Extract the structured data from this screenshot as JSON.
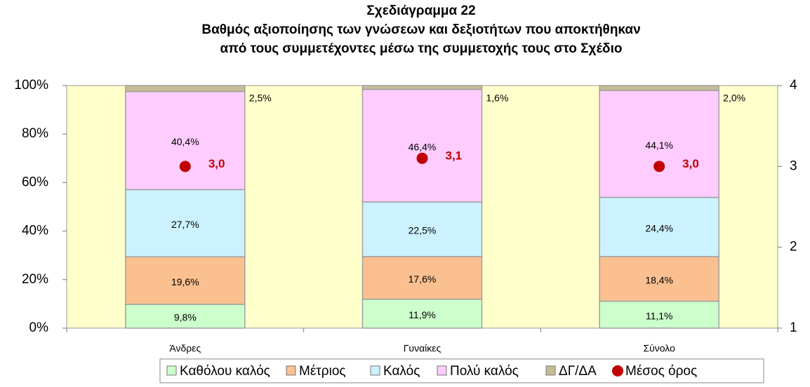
{
  "chart_data": {
    "type": "stacked_bar",
    "title": [
      "Σχεδιάγραμμα 22",
      "Βαθμός αξιοποίησης των γνώσεων και δεξιοτήτων που αποκτήθηκαν",
      "από τους συμμετέχοντες μέσω της συμμετοχής τους στο Σχέδιο"
    ],
    "categories": [
      "Άνδρες",
      "Γυναίκες",
      "Σύνολο"
    ],
    "series": [
      {
        "name": "Καθόλου καλός",
        "color": "#ccffcc",
        "values": [
          9.8,
          11.9,
          11.1
        ],
        "value_labels": [
          "9,8%",
          "11,9%",
          "11,1%"
        ]
      },
      {
        "name": "Μέτριος",
        "color": "#fac090",
        "values": [
          19.6,
          17.6,
          18.4
        ],
        "value_labels": [
          "19,6%",
          "17,6%",
          "18,4%"
        ]
      },
      {
        "name": "Καλός",
        "color": "#ccf2ff",
        "values": [
          27.7,
          22.5,
          24.4
        ],
        "value_labels": [
          "27,7%",
          "22,5%",
          "24,4%"
        ]
      },
      {
        "name": "Πολύ καλός",
        "color": "#ffccff",
        "values": [
          40.4,
          46.4,
          44.1
        ],
        "value_labels": [
          "40,4%",
          "46,4%",
          "44,1%"
        ]
      },
      {
        "name": "ΔΓ/ΔΑ",
        "color": "#c4bd97",
        "values": [
          2.5,
          1.6,
          2.0
        ],
        "value_labels": [
          "2,5%",
          "1,6%",
          "2,0%"
        ]
      },
      {
        "name": "Μέσος όρος",
        "color": "#c00000",
        "type": "scatter",
        "axis": "y2",
        "values": [
          3.0,
          3.1,
          3.0
        ],
        "value_labels": [
          "3,0",
          "3,1",
          "3,0"
        ]
      }
    ],
    "ylim": [
      0,
      100
    ],
    "yticks": [
      {
        "value": 0,
        "label": "0%"
      },
      {
        "value": 20,
        "label": "20%"
      },
      {
        "value": 40,
        "label": "40%"
      },
      {
        "value": 60,
        "label": "60%"
      },
      {
        "value": 80,
        "label": "80%"
      },
      {
        "value": 100,
        "label": "100%"
      }
    ],
    "y2lim": [
      1,
      4
    ],
    "y2ticks": [
      1,
      2,
      3,
      4
    ],
    "plot_background": "#ffffcc",
    "legend": "bottom"
  }
}
